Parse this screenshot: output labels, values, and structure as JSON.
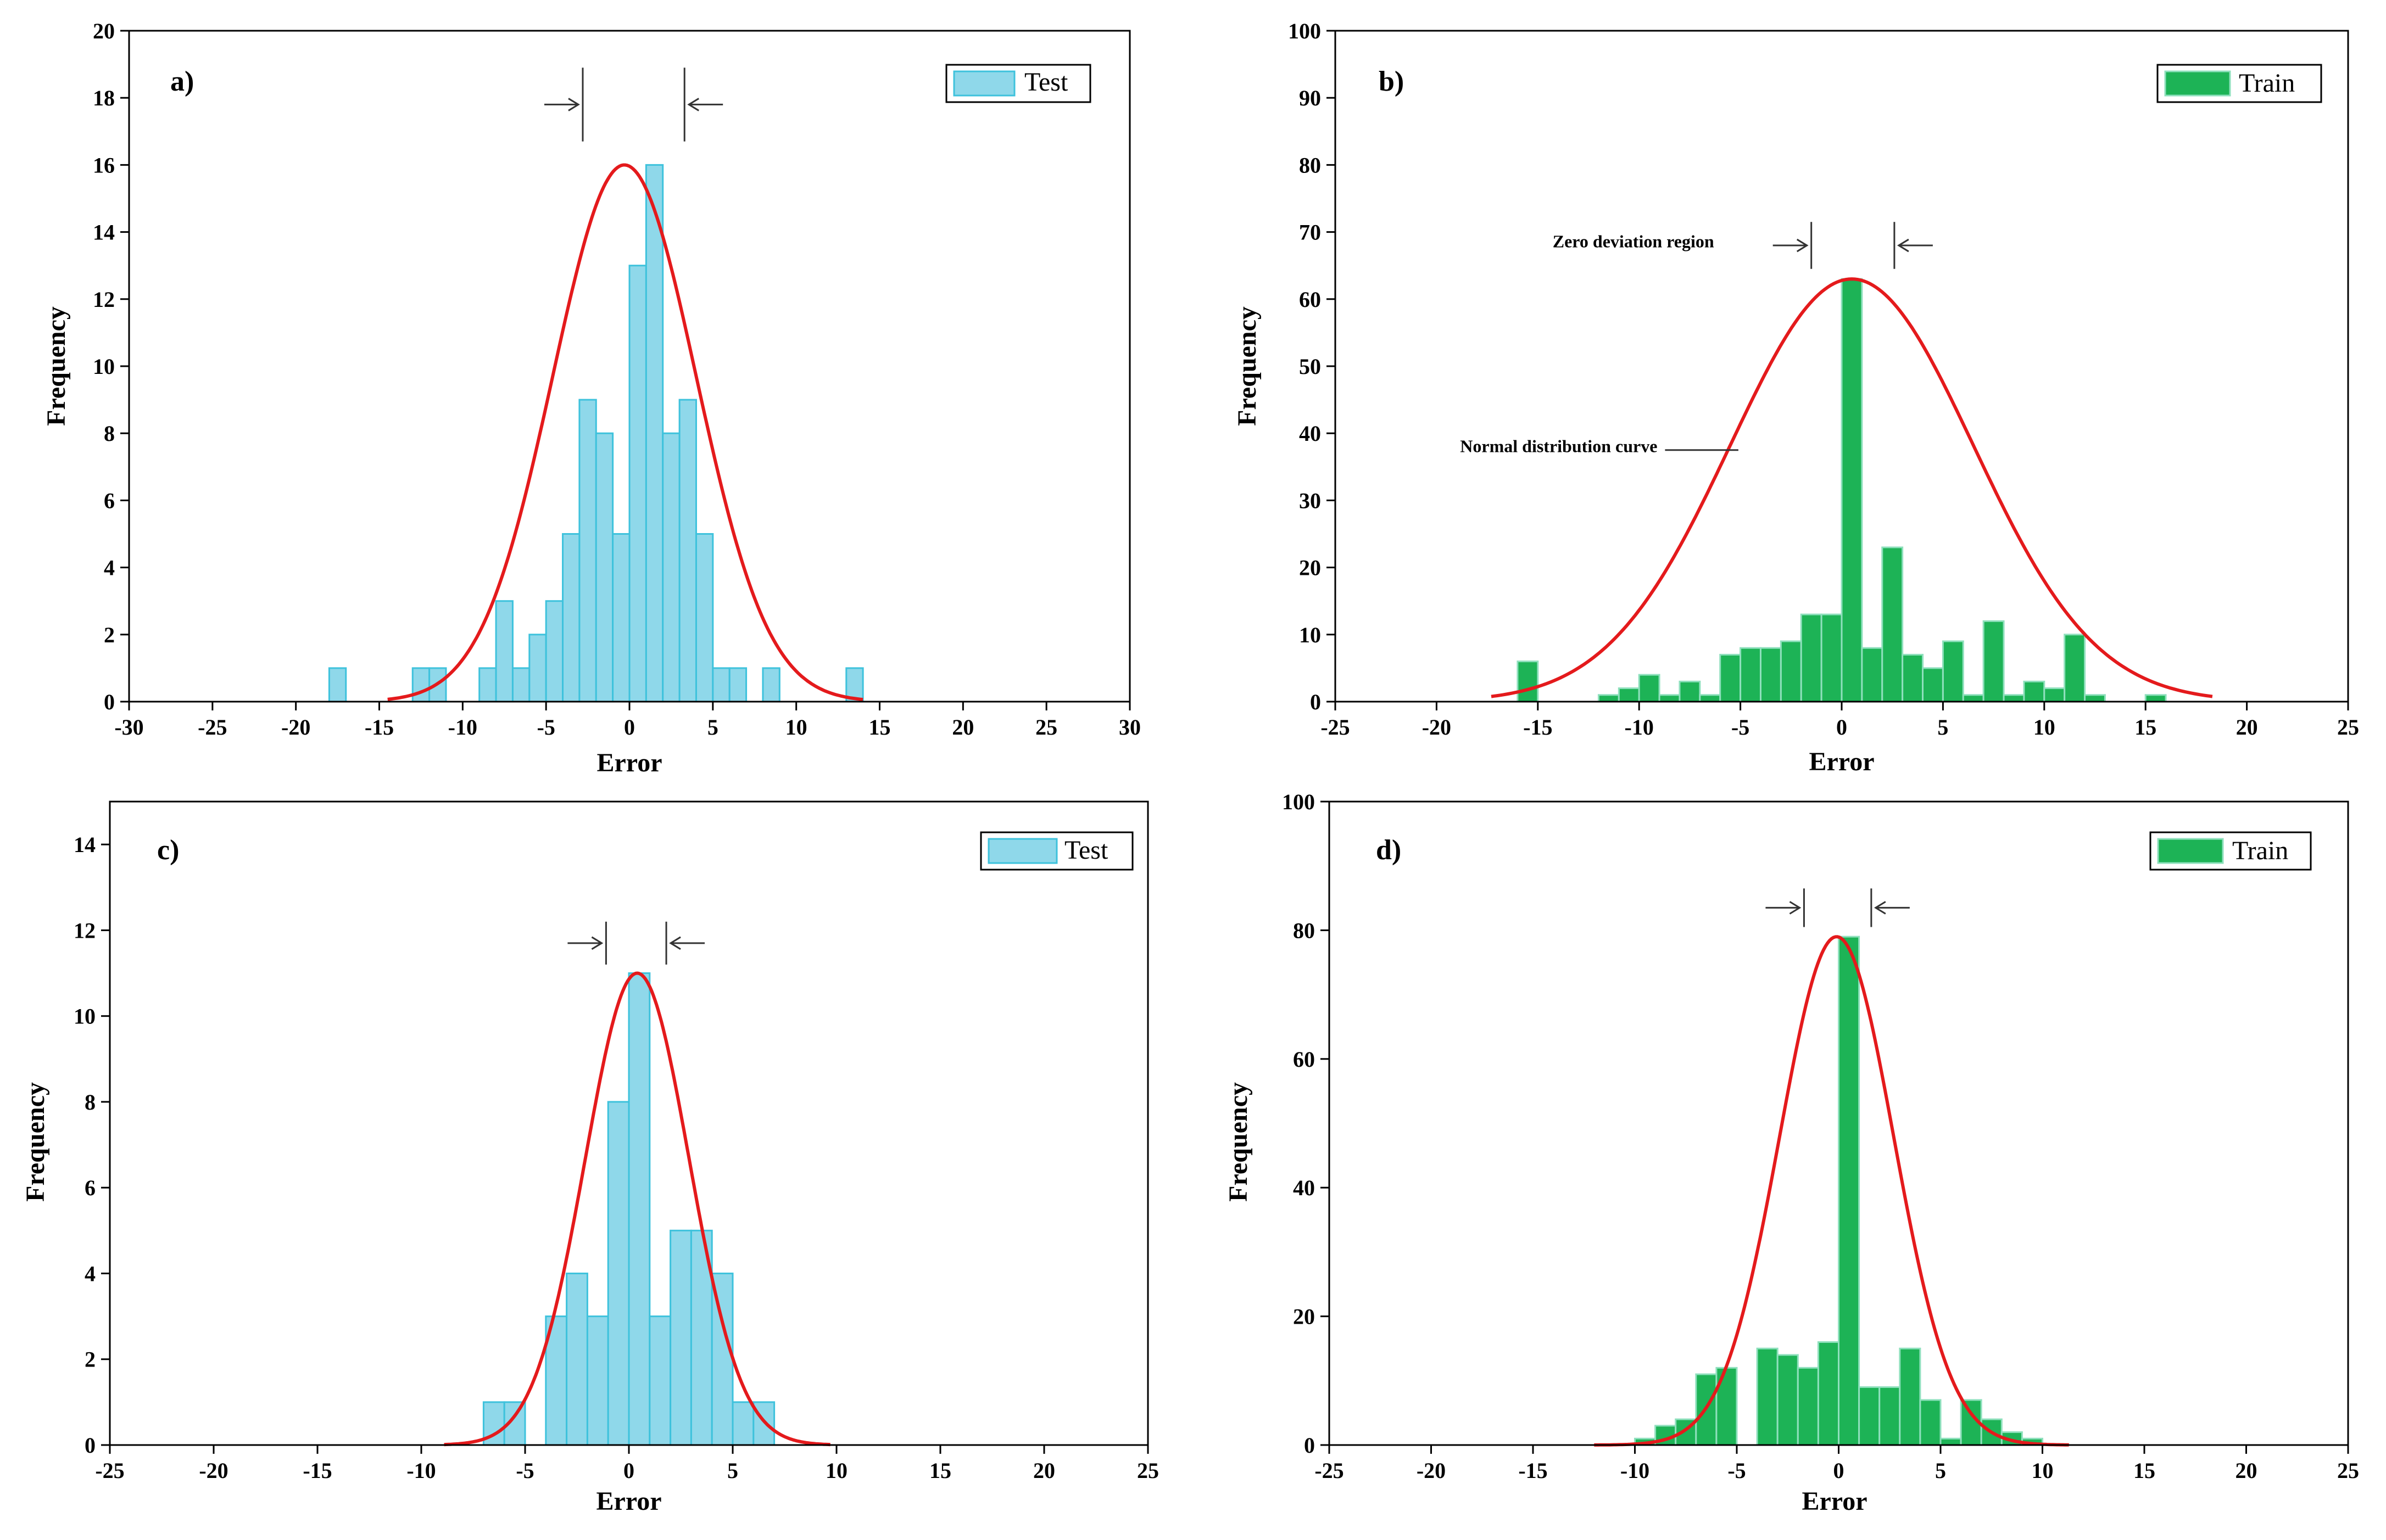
{
  "chart_data": [
    {
      "panel": "a)",
      "type": "bar",
      "series_name": "Test",
      "bar_color": "#8fd8ea",
      "bar_edge": "#3ec2dc",
      "curve_color": "#e41a1c",
      "xlabel": "Error",
      "ylabel": "Frequency",
      "xlim": [
        -30,
        30
      ],
      "ylim": [
        0,
        20
      ],
      "xticks": [
        -30,
        -25,
        -20,
        -15,
        -10,
        -5,
        0,
        5,
        10,
        15,
        20,
        25,
        30
      ],
      "yticks": [
        0,
        2,
        4,
        6,
        8,
        10,
        12,
        14,
        16,
        18,
        20
      ],
      "bin_width": 1,
      "bins": [
        {
          "x": -17.5,
          "y": 1
        },
        {
          "x": -12.5,
          "y": 1
        },
        {
          "x": -11.5,
          "y": 1
        },
        {
          "x": -8.5,
          "y": 1
        },
        {
          "x": -7.5,
          "y": 3
        },
        {
          "x": -6.5,
          "y": 1
        },
        {
          "x": -5.5,
          "y": 2
        },
        {
          "x": -4.5,
          "y": 3
        },
        {
          "x": -3.5,
          "y": 5
        },
        {
          "x": -2.5,
          "y": 9
        },
        {
          "x": -1.5,
          "y": 8
        },
        {
          "x": -0.5,
          "y": 5
        },
        {
          "x": 0.5,
          "y": 13
        },
        {
          "x": 1.5,
          "y": 16
        },
        {
          "x": 2.5,
          "y": 8
        },
        {
          "x": 3.5,
          "y": 9
        },
        {
          "x": 4.5,
          "y": 5
        },
        {
          "x": 5.5,
          "y": 1
        },
        {
          "x": 6.5,
          "y": 1
        },
        {
          "x": 8.5,
          "y": 1
        },
        {
          "x": 13.5,
          "y": 1
        }
      ],
      "curve": {
        "mean": -0.3,
        "sd": 4.3,
        "peak": 16,
        "x_from": -14.5,
        "x_to": 14
      },
      "zero_markers": [
        -2.8,
        3.3
      ],
      "zero_marker_y_top": 18.9,
      "zero_marker_y_bottom": 16.7
    },
    {
      "panel": "b)",
      "type": "bar",
      "series_name": "Train",
      "bar_color": "#1db356",
      "bar_edge": "#8fe0bd",
      "curve_color": "#e41a1c",
      "xlabel": "Error",
      "ylabel": "Frequency",
      "xlim": [
        -25,
        25
      ],
      "ylim": [
        0,
        100
      ],
      "xticks": [
        -25,
        -20,
        -15,
        -10,
        -5,
        0,
        5,
        10,
        15,
        20,
        25
      ],
      "yticks": [
        0,
        10,
        20,
        30,
        40,
        50,
        60,
        70,
        80,
        90,
        100
      ],
      "bin_width": 1,
      "bins": [
        {
          "x": -15.5,
          "y": 6
        },
        {
          "x": -11.5,
          "y": 1
        },
        {
          "x": -10.5,
          "y": 2
        },
        {
          "x": -9.5,
          "y": 4
        },
        {
          "x": -8.5,
          "y": 1
        },
        {
          "x": -7.5,
          "y": 3
        },
        {
          "x": -6.5,
          "y": 1
        },
        {
          "x": -5.5,
          "y": 7
        },
        {
          "x": -4.5,
          "y": 8
        },
        {
          "x": -3.5,
          "y": 8
        },
        {
          "x": -2.5,
          "y": 9
        },
        {
          "x": -1.5,
          "y": 13
        },
        {
          "x": -0.5,
          "y": 13
        },
        {
          "x": 0.5,
          "y": 63
        },
        {
          "x": 1.5,
          "y": 8
        },
        {
          "x": 2.5,
          "y": 23
        },
        {
          "x": 3.5,
          "y": 7
        },
        {
          "x": 4.5,
          "y": 5
        },
        {
          "x": 5.5,
          "y": 9
        },
        {
          "x": 6.5,
          "y": 1
        },
        {
          "x": 7.5,
          "y": 12
        },
        {
          "x": 8.5,
          "y": 1
        },
        {
          "x": 9.5,
          "y": 3
        },
        {
          "x": 10.5,
          "y": 2
        },
        {
          "x": 11.5,
          "y": 10
        },
        {
          "x": 12.5,
          "y": 1
        },
        {
          "x": 15.5,
          "y": 1
        }
      ],
      "curve": {
        "mean": 0.5,
        "sd": 6.0,
        "peak": 63,
        "x_from": -17.3,
        "x_to": 18.3
      },
      "zero_markers": [
        -1.5,
        2.6
      ],
      "zero_marker_y_top": 71.5,
      "zero_marker_y_bottom": 64.5,
      "annotations": {
        "zero_region": "Zero deviation region",
        "curve_label": "Normal distribution curve"
      },
      "annotation_anchors": {
        "zero_region": {
          "x": -6.3,
          "y": 67.7
        },
        "curve_label": {
          "x": -9.1,
          "y": 37.2
        },
        "curve_pointer_to": {
          "x": -5.1,
          "y": 37.5
        }
      }
    },
    {
      "panel": "c)",
      "type": "bar",
      "series_name": "Test",
      "bar_color": "#8fd8ea",
      "bar_edge": "#3ec2dc",
      "curve_color": "#e41a1c",
      "xlabel": "Error",
      "ylabel": "Frequency",
      "xlim": [
        -25,
        25
      ],
      "ylim": [
        0,
        15
      ],
      "xticks": [
        -25,
        -20,
        -15,
        -10,
        -5,
        0,
        5,
        10,
        15,
        20,
        25
      ],
      "yticks": [
        0,
        2,
        4,
        6,
        8,
        10,
        12,
        14
      ],
      "bin_width": 1,
      "bins": [
        {
          "x": -6.5,
          "y": 1
        },
        {
          "x": -5.5,
          "y": 1
        },
        {
          "x": -3.5,
          "y": 3
        },
        {
          "x": -2.5,
          "y": 4
        },
        {
          "x": -1.5,
          "y": 3
        },
        {
          "x": -0.5,
          "y": 8
        },
        {
          "x": 0.5,
          "y": 11
        },
        {
          "x": 1.5,
          "y": 3
        },
        {
          "x": 2.5,
          "y": 5
        },
        {
          "x": 3.5,
          "y": 5
        },
        {
          "x": 4.5,
          "y": 4
        },
        {
          "x": 5.5,
          "y": 1
        },
        {
          "x": 6.5,
          "y": 1
        }
      ],
      "curve": {
        "mean": 0.4,
        "sd": 2.5,
        "peak": 11,
        "x_from": -8.9,
        "x_to": 9.7
      },
      "zero_markers": [
        -1.1,
        1.8
      ],
      "zero_marker_y_top": 12.2,
      "zero_marker_y_bottom": 11.2
    },
    {
      "panel": "d)",
      "type": "bar",
      "series_name": "Train",
      "bar_color": "#1db356",
      "bar_edge": "#8fe0bd",
      "curve_color": "#e41a1c",
      "xlabel": "Error",
      "ylabel": "Frequency",
      "xlim": [
        -25,
        25
      ],
      "ylim": [
        0,
        100
      ],
      "xticks": [
        -25,
        -20,
        -15,
        -10,
        -5,
        0,
        5,
        10,
        15,
        20,
        25
      ],
      "yticks": [
        0,
        20,
        40,
        60,
        80,
        100
      ],
      "bin_width": 1,
      "bins": [
        {
          "x": -9.5,
          "y": 1
        },
        {
          "x": -8.5,
          "y": 3
        },
        {
          "x": -7.5,
          "y": 4
        },
        {
          "x": -6.5,
          "y": 11
        },
        {
          "x": -5.5,
          "y": 12
        },
        {
          "x": -3.5,
          "y": 15
        },
        {
          "x": -2.5,
          "y": 14
        },
        {
          "x": -1.5,
          "y": 12
        },
        {
          "x": -0.5,
          "y": 16
        },
        {
          "x": 0.5,
          "y": 79
        },
        {
          "x": 1.5,
          "y": 9
        },
        {
          "x": 2.5,
          "y": 9
        },
        {
          "x": 3.5,
          "y": 15
        },
        {
          "x": 4.5,
          "y": 7
        },
        {
          "x": 5.5,
          "y": 1
        },
        {
          "x": 6.5,
          "y": 7
        },
        {
          "x": 7.5,
          "y": 4
        },
        {
          "x": 8.5,
          "y": 2
        },
        {
          "x": 9.5,
          "y": 1
        }
      ],
      "curve": {
        "mean": -0.1,
        "sd": 2.8,
        "peak": 79,
        "x_from": -12.0,
        "x_to": 11.3
      },
      "zero_markers": [
        -1.7,
        1.6
      ],
      "zero_marker_y_top": 86.5,
      "zero_marker_y_bottom": 80.5
    }
  ]
}
